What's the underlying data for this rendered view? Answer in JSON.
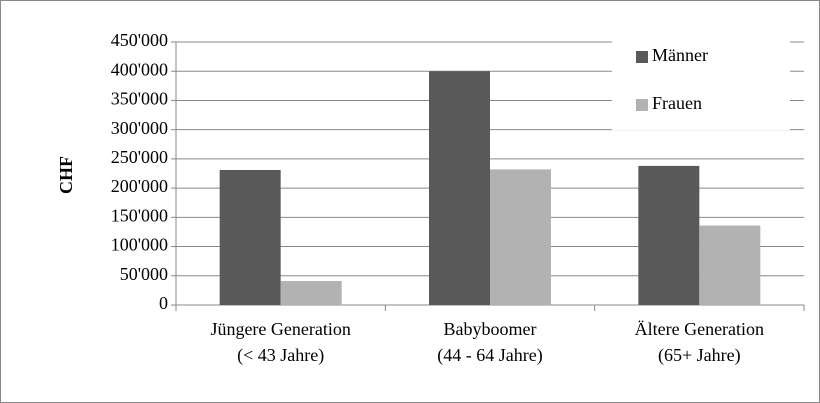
{
  "chart_data": {
    "type": "bar",
    "ylabel": "CHF",
    "categories": [
      "Jüngere Generation\n(< 43 Jahre)",
      "Babyboomer\n(44 - 64 Jahre)",
      "Ältere Generation\n(65+ Jahre)"
    ],
    "series": [
      {
        "name": "Männer",
        "color": "#595959",
        "values": [
          231000,
          400000,
          238000
        ]
      },
      {
        "name": "Frauen",
        "color": "#b2b2b2",
        "values": [
          41000,
          232000,
          136000
        ]
      }
    ],
    "ylim": [
      0,
      450000
    ],
    "yticks": [
      0,
      {
        "value": 50000,
        "label": "50'000"
      },
      {
        "value": 100000,
        "label": "100'000"
      },
      {
        "value": 150000,
        "label": "150'000"
      },
      {
        "value": 200000,
        "label": "200'000"
      },
      {
        "value": 250000,
        "label": "250'000"
      },
      {
        "value": 300000,
        "label": "300'000"
      },
      {
        "value": 350000,
        "label": "350'000"
      },
      {
        "value": 400000,
        "label": "400'000"
      },
      {
        "value": 450000,
        "label": "450'000"
      }
    ],
    "grid": true,
    "legend": "top-right"
  }
}
